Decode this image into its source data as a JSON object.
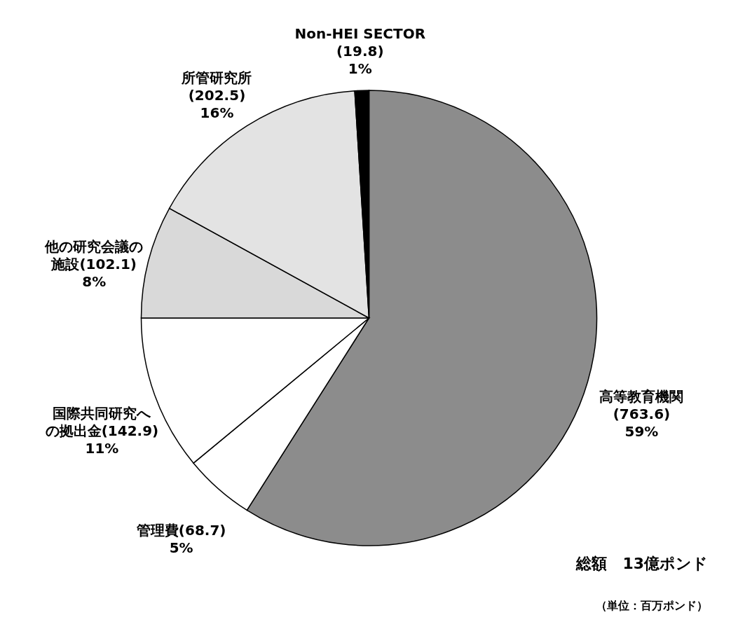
{
  "chart_data": {
    "type": "pie",
    "categories": [
      "高等教育機関(763.6)",
      "管理費(68.7)",
      "国際共同研究への拠出金(142.9)",
      "他の研究会議の施設(102.1)",
      "所管研究所(202.5)",
      "Non-HEI SECTOR(19.8)"
    ],
    "values": [
      59,
      5,
      11,
      8,
      16,
      1
    ],
    "value_labels": [
      "59%",
      "5%",
      "11%",
      "8%",
      "16%",
      "1%"
    ],
    "colors": [
      "#8c8c8c",
      "#ffffff",
      "#ffffff",
      "#d9d9d9",
      "#e3e3e3",
      "#000000"
    ],
    "annotations": [
      "総額　13億ポンド",
      "（単位：百万ポンド）"
    ]
  }
}
